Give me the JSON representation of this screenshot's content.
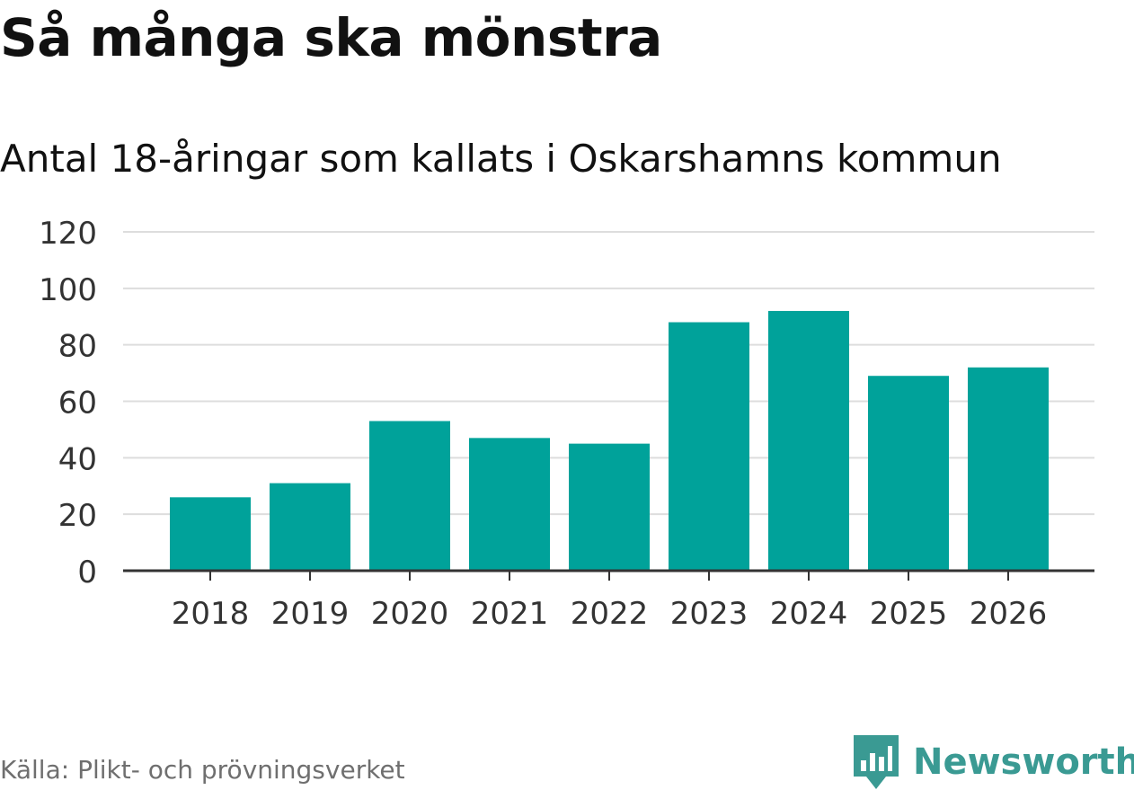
{
  "title": "Så många ska mönstra",
  "subtitle": "Antal 18-åringar som kallats i Oskarshamns kommun",
  "source": "Källa: Plikt- och prövningsverket",
  "brand": {
    "name": "Newsworthy",
    "icon": "newsworthy-logo-icon",
    "color": "#3a9a93"
  },
  "colors": {
    "bar": "#00a29a",
    "grid": "#dddddd",
    "axis": "#333333",
    "text": "#333333"
  },
  "chart_data": {
    "type": "bar",
    "categories": [
      "2018",
      "2019",
      "2020",
      "2021",
      "2022",
      "2023",
      "2024",
      "2025",
      "2026"
    ],
    "values": [
      26,
      31,
      53,
      47,
      45,
      88,
      92,
      69,
      72
    ],
    "ylim": [
      0,
      120
    ],
    "yticks": [
      0,
      20,
      40,
      60,
      80,
      100,
      120
    ],
    "xlabel": "",
    "ylabel": "",
    "grid": true
  }
}
